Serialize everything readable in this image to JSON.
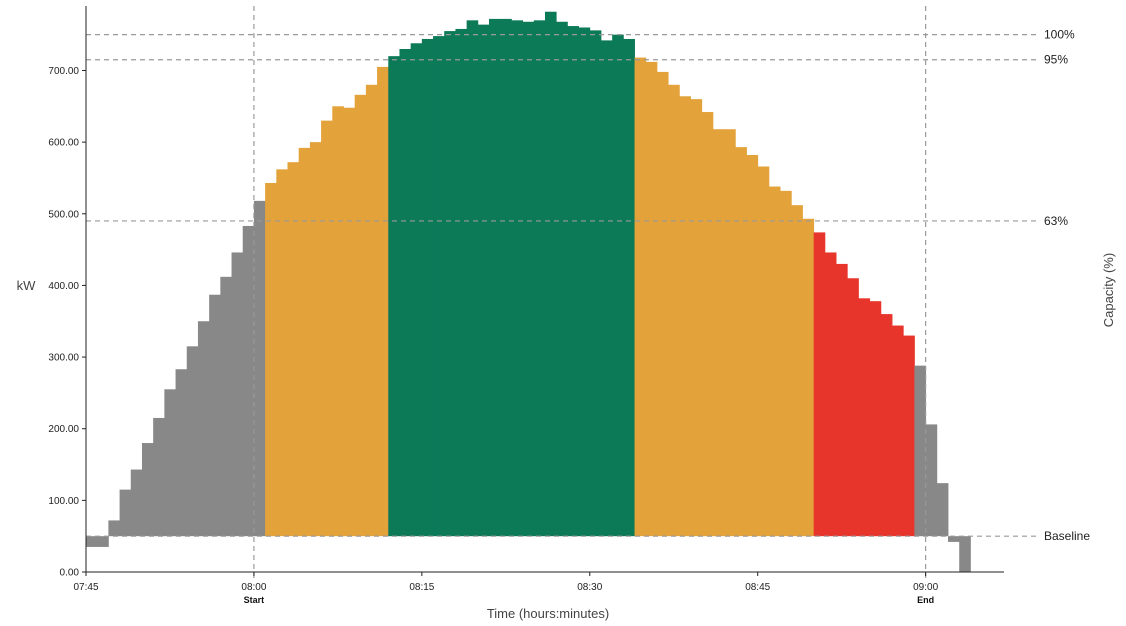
{
  "chart_data": {
    "type": "bar",
    "xlabel": "Time (hours:minutes)",
    "ylabel": "kW",
    "y2label": "Capacity (%)",
    "ylim": [
      0,
      790
    ],
    "xlim_minutes": [
      465,
      547
    ],
    "y_ticks": [
      "0.00",
      "100.00",
      "200.00",
      "300.00",
      "400.00",
      "500.00",
      "600.00",
      "700.00"
    ],
    "x_ticks": [
      {
        "minute": 465,
        "label": "07:45",
        "sub": ""
      },
      {
        "minute": 480,
        "label": "08:00",
        "sub": "Start"
      },
      {
        "minute": 495,
        "label": "08:15",
        "sub": ""
      },
      {
        "minute": 510,
        "label": "08:30",
        "sub": ""
      },
      {
        "minute": 525,
        "label": "08:45",
        "sub": ""
      },
      {
        "minute": 540,
        "label": "09:00",
        "sub": "End"
      }
    ],
    "baseline": 50,
    "reference_lines": [
      {
        "label": "100%",
        "value": 750
      },
      {
        "label": "95%",
        "value": 715
      },
      {
        "label": "63%",
        "value": 490
      },
      {
        "label": "Baseline",
        "value": 50
      }
    ],
    "vertical_markers_minutes": [
      480,
      540
    ],
    "colors": {
      "grey": "#888888",
      "orange": "#e3a23a",
      "green": "#0c7a57",
      "red": "#e8352b",
      "reference": "#999999"
    },
    "bin_width_minutes": 1,
    "bins": [
      {
        "minute": 465,
        "value": 35,
        "color": "grey"
      },
      {
        "minute": 466,
        "value": 35,
        "color": "grey"
      },
      {
        "minute": 467,
        "value": 72,
        "color": "grey"
      },
      {
        "minute": 468,
        "value": 115,
        "color": "grey"
      },
      {
        "minute": 469,
        "value": 143,
        "color": "grey"
      },
      {
        "minute": 470,
        "value": 180,
        "color": "grey"
      },
      {
        "minute": 471,
        "value": 215,
        "color": "grey"
      },
      {
        "minute": 472,
        "value": 255,
        "color": "grey"
      },
      {
        "minute": 473,
        "value": 283,
        "color": "grey"
      },
      {
        "minute": 474,
        "value": 315,
        "color": "grey"
      },
      {
        "minute": 475,
        "value": 350,
        "color": "grey"
      },
      {
        "minute": 476,
        "value": 387,
        "color": "grey"
      },
      {
        "minute": 477,
        "value": 412,
        "color": "grey"
      },
      {
        "minute": 478,
        "value": 446,
        "color": "grey"
      },
      {
        "minute": 479,
        "value": 483,
        "color": "grey"
      },
      {
        "minute": 480,
        "value": 518,
        "color": "grey"
      },
      {
        "minute": 481,
        "value": 543,
        "color": "orange"
      },
      {
        "minute": 482,
        "value": 562,
        "color": "orange"
      },
      {
        "minute": 483,
        "value": 572,
        "color": "orange"
      },
      {
        "minute": 484,
        "value": 592,
        "color": "orange"
      },
      {
        "minute": 485,
        "value": 600,
        "color": "orange"
      },
      {
        "minute": 486,
        "value": 630,
        "color": "orange"
      },
      {
        "minute": 487,
        "value": 650,
        "color": "orange"
      },
      {
        "minute": 488,
        "value": 648,
        "color": "orange"
      },
      {
        "minute": 489,
        "value": 666,
        "color": "orange"
      },
      {
        "minute": 490,
        "value": 680,
        "color": "orange"
      },
      {
        "minute": 491,
        "value": 705,
        "color": "orange"
      },
      {
        "minute": 492,
        "value": 720,
        "color": "green"
      },
      {
        "minute": 493,
        "value": 730,
        "color": "green"
      },
      {
        "minute": 494,
        "value": 738,
        "color": "green"
      },
      {
        "minute": 495,
        "value": 744,
        "color": "green"
      },
      {
        "minute": 496,
        "value": 748,
        "color": "green"
      },
      {
        "minute": 497,
        "value": 755,
        "color": "green"
      },
      {
        "minute": 498,
        "value": 758,
        "color": "green"
      },
      {
        "minute": 499,
        "value": 770,
        "color": "green"
      },
      {
        "minute": 500,
        "value": 764,
        "color": "green"
      },
      {
        "minute": 501,
        "value": 772,
        "color": "green"
      },
      {
        "minute": 502,
        "value": 772,
        "color": "green"
      },
      {
        "minute": 503,
        "value": 770,
        "color": "green"
      },
      {
        "minute": 504,
        "value": 768,
        "color": "green"
      },
      {
        "minute": 505,
        "value": 770,
        "color": "green"
      },
      {
        "minute": 506,
        "value": 782,
        "color": "green"
      },
      {
        "minute": 507,
        "value": 768,
        "color": "green"
      },
      {
        "minute": 508,
        "value": 762,
        "color": "green"
      },
      {
        "minute": 509,
        "value": 760,
        "color": "green"
      },
      {
        "minute": 510,
        "value": 756,
        "color": "green"
      },
      {
        "minute": 511,
        "value": 742,
        "color": "green"
      },
      {
        "minute": 512,
        "value": 750,
        "color": "green"
      },
      {
        "minute": 513,
        "value": 744,
        "color": "green"
      },
      {
        "minute": 514,
        "value": 718,
        "color": "orange"
      },
      {
        "minute": 515,
        "value": 712,
        "color": "orange"
      },
      {
        "minute": 516,
        "value": 698,
        "color": "orange"
      },
      {
        "minute": 517,
        "value": 680,
        "color": "orange"
      },
      {
        "minute": 518,
        "value": 664,
        "color": "orange"
      },
      {
        "minute": 519,
        "value": 660,
        "color": "orange"
      },
      {
        "minute": 520,
        "value": 642,
        "color": "orange"
      },
      {
        "minute": 521,
        "value": 618,
        "color": "orange"
      },
      {
        "minute": 522,
        "value": 618,
        "color": "orange"
      },
      {
        "minute": 523,
        "value": 593,
        "color": "orange"
      },
      {
        "minute": 524,
        "value": 582,
        "color": "orange"
      },
      {
        "minute": 525,
        "value": 566,
        "color": "orange"
      },
      {
        "minute": 526,
        "value": 538,
        "color": "orange"
      },
      {
        "minute": 527,
        "value": 532,
        "color": "orange"
      },
      {
        "minute": 528,
        "value": 512,
        "color": "orange"
      },
      {
        "minute": 529,
        "value": 493,
        "color": "orange"
      },
      {
        "minute": 530,
        "value": 474,
        "color": "red"
      },
      {
        "minute": 531,
        "value": 446,
        "color": "red"
      },
      {
        "minute": 532,
        "value": 430,
        "color": "red"
      },
      {
        "minute": 533,
        "value": 410,
        "color": "red"
      },
      {
        "minute": 534,
        "value": 382,
        "color": "red"
      },
      {
        "minute": 535,
        "value": 378,
        "color": "red"
      },
      {
        "minute": 536,
        "value": 360,
        "color": "red"
      },
      {
        "minute": 537,
        "value": 344,
        "color": "red"
      },
      {
        "minute": 538,
        "value": 330,
        "color": "red"
      },
      {
        "minute": 539,
        "value": 288,
        "color": "grey"
      },
      {
        "minute": 540,
        "value": 206,
        "color": "grey"
      },
      {
        "minute": 541,
        "value": 124,
        "color": "grey"
      },
      {
        "minute": 542,
        "value": 42,
        "color": "grey"
      },
      {
        "minute": 543,
        "value": 0,
        "color": "grey"
      }
    ]
  }
}
